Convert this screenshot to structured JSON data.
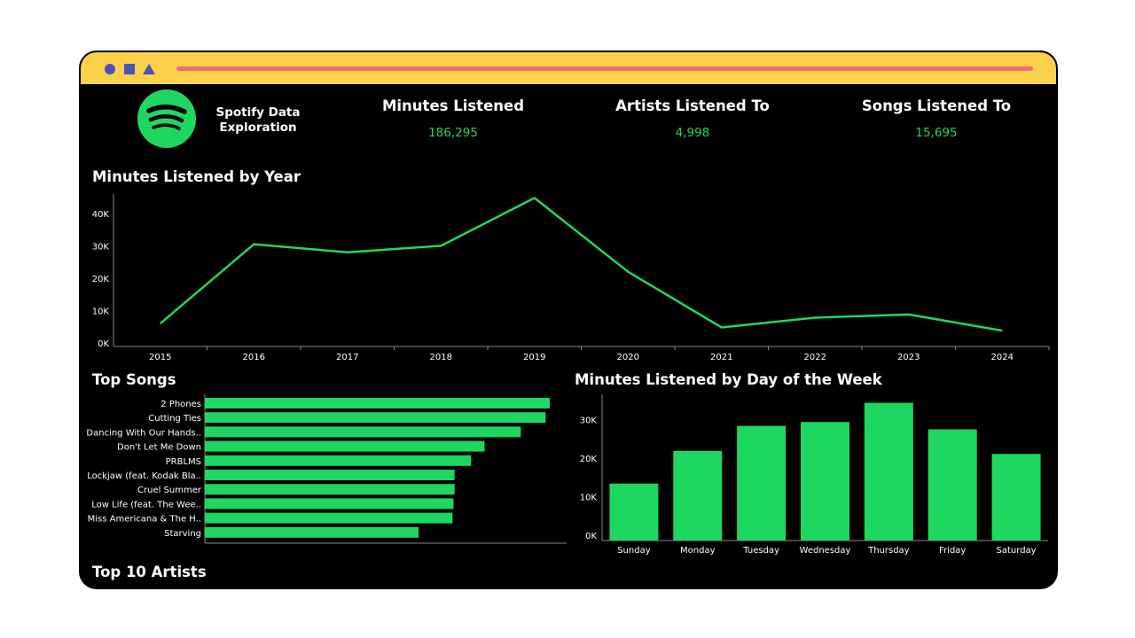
{
  "header": {
    "app_title_line1": "Spotify Data",
    "app_title_line2": "Exploration",
    "kpis": [
      {
        "label": "Minutes Listened",
        "value": "186,295"
      },
      {
        "label": "Artists Listened To",
        "value": "4,998"
      },
      {
        "label": "Songs Listened To",
        "value": "15,695"
      }
    ]
  },
  "sections": {
    "year_title": "Minutes Listened by Year",
    "songs_title": "Top Songs",
    "day_title": "Minutes Listened by Day of the Week",
    "artists_title": "Top 10 Artists"
  },
  "colors": {
    "accent": "#1ed760",
    "titlebar": "#fad14a",
    "titlebar_shapes": "#4b51b5",
    "titlebar_bar": "#f26d6d",
    "background": "#000000"
  },
  "icons": [
    "spotify-logo-icon",
    "circle-icon",
    "square-icon",
    "triangle-icon"
  ],
  "chart_data": [
    {
      "type": "line",
      "title": "Minutes Listened by Year",
      "x": [
        "2015",
        "2016",
        "2017",
        "2018",
        "2019",
        "2020",
        "2021",
        "2022",
        "2023",
        "2024"
      ],
      "values": [
        6000,
        30500,
        28000,
        30000,
        44800,
        22000,
        4800,
        7800,
        8800,
        3800
      ],
      "yticks": [
        0,
        10000,
        20000,
        30000,
        40000
      ],
      "ytick_labels": [
        "0K",
        "10K",
        "20K",
        "30K",
        "40K"
      ],
      "ylim": [
        0,
        46000
      ]
    },
    {
      "type": "bar",
      "orientation": "horizontal",
      "title": "Top Songs",
      "categories": [
        "2 Phones",
        "Cutting Ties",
        "Dancing With Our Hands..",
        "Don't Let Me Down",
        "PRBLMS",
        "Lockjaw (feat. Kodak Bla..",
        "Cruel Summer",
        "Low Life (feat. The Wee..",
        "Miss Americana & The H..",
        "Starving"
      ],
      "values": [
        100,
        98.8,
        91.6,
        81.1,
        77.2,
        72.4,
        72.4,
        72.1,
        71.8,
        62.0
      ],
      "xlim": [
        0,
        105
      ]
    },
    {
      "type": "bar",
      "title": "Minutes Listened by Day of the Week",
      "categories": [
        "Sunday",
        "Monday",
        "Tuesday",
        "Wednesday",
        "Thursday",
        "Friday",
        "Saturday"
      ],
      "values": [
        14800,
        23300,
        29800,
        30800,
        35800,
        28900,
        22500
      ],
      "yticks": [
        0,
        10000,
        20000,
        30000
      ],
      "ytick_labels": [
        "0K",
        "10K",
        "20K",
        "30K"
      ],
      "ylim": [
        0,
        38000
      ]
    }
  ]
}
